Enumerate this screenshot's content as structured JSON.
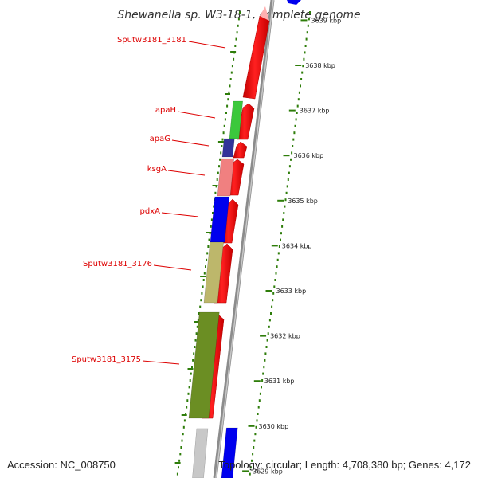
{
  "title": "Shewanella sp. W3-18-1, complete genome",
  "footer": {
    "accession_label": "Accession:",
    "accession": "NC_008750",
    "topology_label": "Topology:",
    "topology": "circular",
    "length_label": "Length:",
    "length": "4,708,380 bp",
    "genes_label": "Genes:",
    "genes": "4,172"
  },
  "colors": {
    "label_red": "#dd0000",
    "tick_green": "#2e7d0a",
    "backbone": "#8c8c8c",
    "cds_red": "#ff0000"
  },
  "kbp_ticks": [
    {
      "label": "3639 kbp",
      "kb": 3639,
      "faded": true
    },
    {
      "label": "3638 kbp",
      "kb": 3638
    },
    {
      "label": "3637 kbp",
      "kb": 3637
    },
    {
      "label": "3636 kbp",
      "kb": 3636
    },
    {
      "label": "3635 kbp",
      "kb": 3635
    },
    {
      "label": "3634 kbp",
      "kb": 3634
    },
    {
      "label": "3633 kbp",
      "kb": 3633
    },
    {
      "label": "3632 kbp",
      "kb": 3632
    },
    {
      "label": "3631 kbp",
      "kb": 3631
    },
    {
      "label": "3630 kbp",
      "kb": 3630
    },
    {
      "label": "3629 kbp",
      "kb": 3629,
      "faded": true
    }
  ],
  "gene_labels": [
    {
      "name": "Sputw3181_3181"
    },
    {
      "name": "apaH"
    },
    {
      "name": "apaG"
    },
    {
      "name": "ksgA"
    },
    {
      "name": "pdxA"
    },
    {
      "name": "Sputw3181_3176"
    },
    {
      "name": "Sputw3181_3175"
    }
  ],
  "gene_blocks": [
    {
      "gene": "apaH",
      "color": "#3cc83c"
    },
    {
      "gene": "apaG",
      "color": "#333399"
    },
    {
      "gene": "ksgA",
      "color": "#f08080"
    },
    {
      "gene": "pdxA",
      "color": "#0000ee"
    },
    {
      "gene": "Sputw3181_3176",
      "color": "#bdb76b"
    },
    {
      "gene": "Sputw3181_3175",
      "color": "#6b8e23"
    },
    {
      "gene": "next",
      "color": "#0000ee"
    }
  ]
}
